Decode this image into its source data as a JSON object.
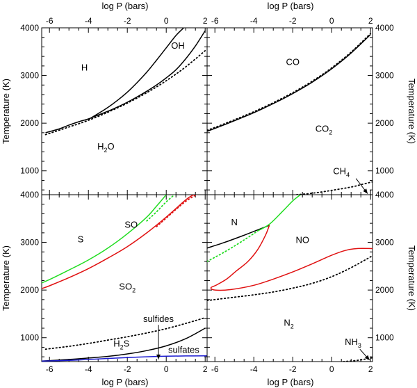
{
  "chart_data": {
    "type": "line",
    "title": "",
    "xlabel": "log P (bars)",
    "ylabel": "Temperature (K)",
    "xlim": [
      -6.4,
      2.1
    ],
    "ylim": [
      500,
      4000
    ],
    "xticks": [
      -6,
      -4,
      -2,
      0,
      2
    ],
    "xtick_labels": [
      "-6",
      "-4",
      "-2",
      "0",
      "2"
    ],
    "yticks": [
      1000,
      2000,
      3000,
      4000
    ],
    "ytick_labels": [
      "1000",
      "2000",
      "3000",
      "4000"
    ],
    "colors": {
      "black": "#000000",
      "green": "#22dd22",
      "red": "#e01010",
      "blue": "#1a1ad0"
    },
    "panels": [
      {
        "id": "top-left",
        "labels": [
          {
            "text": "H",
            "x": -4.2,
            "y": 3100
          },
          {
            "text": "OH",
            "x": 0.6,
            "y": 3560
          },
          {
            "text": "H",
            "sub": "2",
            "tail": "O",
            "x": -3.1,
            "y": 1450
          }
        ],
        "series": [
          {
            "name": "H/OH boundary",
            "color": "black",
            "dashed": false,
            "x": [
              -4.0,
              -3.5,
              -3.0,
              -2.5,
              -2.0,
              -1.5,
              -1.0,
              -0.5,
              0.0,
              0.5,
              0.9
            ],
            "y": [
              2080,
              2200,
              2330,
              2480,
              2650,
              2850,
              3070,
              3320,
              3580,
              3840,
              4000
            ]
          },
          {
            "name": "OH/H2O boundary",
            "color": "black",
            "dashed": false,
            "x": [
              -6.2,
              -5.5,
              -5.0,
              -4.5,
              -4.0,
              -3.5,
              -3.0,
              -2.5,
              -2.0,
              -1.5,
              -1.0,
              -0.5,
              0.0,
              0.5,
              1.0,
              1.5,
              2.0
            ],
            "y": [
              1800,
              1880,
              1960,
              2030,
              2090,
              2170,
              2250,
              2340,
              2440,
              2550,
              2670,
              2800,
              2950,
              3120,
              3350,
              3620,
              3940
            ]
          },
          {
            "name": "H/H2O dotted",
            "color": "black",
            "dashed": true,
            "x": [
              -6.2,
              -5.0,
              -4.0,
              -3.0,
              -2.0,
              -1.0,
              0.0,
              1.0,
              2.0
            ],
            "y": [
              1760,
              1920,
              2060,
              2230,
              2420,
              2640,
              2890,
              3180,
              3520
            ]
          }
        ]
      },
      {
        "id": "top-right",
        "labels": [
          {
            "text": "CO",
            "x": -2.0,
            "y": 3220
          },
          {
            "text": "CO",
            "sub": "2",
            "tail": "",
            "x": -0.4,
            "y": 1820
          },
          {
            "text": "CH",
            "sub": "4",
            "tail": "",
            "x": 0.5,
            "y": 930
          }
        ],
        "series": [
          {
            "name": "CO/CO2 boundary",
            "color": "black",
            "dashed": false,
            "x": [
              -6.4,
              -6.0,
              -5.0,
              -4.0,
              -3.0,
              -2.0,
              -1.0,
              0.0,
              1.0,
              2.0
            ],
            "y": [
              1830,
              1890,
              2050,
              2220,
              2410,
              2620,
              2860,
              3140,
              3470,
              3860
            ]
          },
          {
            "name": "CO/CO2 dotted",
            "color": "black",
            "dashed": true,
            "x": [
              -6.4,
              -6.0,
              -5.0,
              -4.0,
              -3.0,
              -2.0,
              -1.0,
              0.0,
              1.0,
              2.0
            ],
            "y": [
              1850,
              1910,
              2070,
              2240,
              2430,
              2640,
              2880,
              3160,
              3490,
              3880
            ]
          },
          {
            "name": "CH4 dotted",
            "color": "black",
            "dashed": true,
            "x": [
              -1.8,
              -1.0,
              0.0,
              1.0,
              1.5,
              2.1
            ],
            "y": [
              500,
              530,
              590,
              660,
              710,
              770
            ]
          }
        ],
        "arrows": [
          {
            "x1": 1.25,
            "y1": 840,
            "x2": 1.85,
            "y2": 520
          }
        ]
      },
      {
        "id": "bottom-left",
        "labels": [
          {
            "text": "S",
            "x": -4.4,
            "y": 3000
          },
          {
            "text": "SO",
            "x": -1.8,
            "y": 3310
          },
          {
            "text": "SO",
            "sub": "2",
            "tail": "",
            "x": -2.0,
            "y": 2010
          },
          {
            "text": "sulfides",
            "x": -0.4,
            "y": 1330
          },
          {
            "text": "H",
            "sub": "2",
            "tail": "S",
            "x": -2.3,
            "y": 810
          },
          {
            "text": "sulfates",
            "x": 0.9,
            "y": 680
          }
        ],
        "series": [
          {
            "name": "S/SO boundary",
            "color": "green",
            "dashed": false,
            "x": [
              -6.4,
              -6.0,
              -5.0,
              -4.0,
              -3.0,
              -2.0,
              -1.0,
              -0.5,
              0.0
            ],
            "y": [
              2150,
              2220,
              2420,
              2630,
              2880,
              3180,
              3530,
              3760,
              4000
            ]
          },
          {
            "name": "S/SO dotted",
            "color": "green",
            "dashed": true,
            "x": [
              -1.0,
              -0.5,
              0.0,
              0.6
            ],
            "y": [
              3450,
              3640,
              3850,
              4060
            ]
          },
          {
            "name": "SO/SO2 boundary",
            "color": "red",
            "dashed": false,
            "x": [
              -6.4,
              -6.0,
              -5.0,
              -4.0,
              -3.0,
              -2.0,
              -1.0,
              0.0,
              1.0,
              1.4
            ],
            "y": [
              2030,
              2090,
              2260,
              2450,
              2670,
              2910,
              3200,
              3530,
              3890,
              4000
            ]
          },
          {
            "name": "SO/SO2 dotted",
            "color": "red",
            "dashed": true,
            "x": [
              -0.5,
              0.0,
              1.0,
              1.9
            ],
            "y": [
              3330,
              3510,
              3860,
              4080
            ]
          },
          {
            "name": "sulfides dotted",
            "color": "black",
            "dashed": true,
            "x": [
              -6.2,
              -5.0,
              -4.0,
              -3.0,
              -2.0,
              -1.0,
              0.0,
              1.0,
              2.0
            ],
            "y": [
              760,
              820,
              880,
              950,
              1020,
              1100,
              1190,
              1300,
              1420
            ]
          },
          {
            "name": "H2S/SO2 boundary",
            "color": "black",
            "dashed": false,
            "x": [
              -6.4,
              -5.0,
              -4.0,
              -3.0,
              -2.0,
              -1.0,
              0.0,
              1.0,
              2.0
            ],
            "y": [
              510,
              545,
              575,
              610,
              660,
              730,
              830,
              980,
              1200
            ]
          },
          {
            "name": "sulfates boundary",
            "color": "blue",
            "dashed": false,
            "x": [
              -6.4,
              -5.0,
              -4.0,
              -3.0,
              -2.0,
              -1.0,
              0.0,
              1.0,
              2.1
            ],
            "y": [
              510,
              525,
              545,
              565,
              585,
              600,
              612,
              618,
              620
            ]
          }
        ],
        "arrows": [
          {
            "x1": -0.4,
            "y1": 1270,
            "x2": -0.4,
            "y2": 545
          }
        ]
      },
      {
        "id": "bottom-right",
        "labels": [
          {
            "text": "N",
            "x": -5.0,
            "y": 3360
          },
          {
            "text": "NO",
            "x": -1.5,
            "y": 2990
          },
          {
            "text": "N",
            "sub": "2",
            "tail": "",
            "x": -2.2,
            "y": 1250
          },
          {
            "text": "NH",
            "sub": "3",
            "tail": "",
            "x": 1.1,
            "y": 850
          }
        ],
        "series": [
          {
            "name": "N/NO boundary",
            "color": "black",
            "dashed": false,
            "x": [
              -6.4,
              -5.5,
              -4.5,
              -3.5,
              -3.2
            ],
            "y": [
              2880,
              3000,
              3150,
              3310,
              3360
            ]
          },
          {
            "name": "N/N2 green",
            "color": "green",
            "dashed": false,
            "x": [
              -3.8,
              -3.2,
              -2.5,
              -2.0,
              -1.6
            ],
            "y": [
              3240,
              3380,
              3660,
              3870,
              4000
            ]
          },
          {
            "name": "N/N2 green dotted",
            "color": "green",
            "dashed": true,
            "x": [
              -6.4,
              -5.5,
              -4.5,
              -3.8
            ],
            "y": [
              2600,
              2800,
              3050,
              3240
            ]
          },
          {
            "name": "NO region boundary",
            "color": "red",
            "dashed": false,
            "x": [
              -3.2,
              -3.4,
              -3.8,
              -4.3,
              -4.9,
              -5.4,
              -5.9,
              -6.2,
              -6.0,
              -5.2,
              -4.0,
              -3.0,
              -2.0,
              -1.0,
              0.0,
              0.7,
              1.3,
              2.1
            ],
            "y": [
              3360,
              3150,
              2850,
              2600,
              2400,
              2230,
              2110,
              2050,
              2000,
              2010,
              2100,
              2230,
              2380,
              2550,
              2730,
              2830,
              2870,
              2870
            ]
          },
          {
            "name": "N2 dotted",
            "color": "black",
            "dashed": true,
            "x": [
              -6.4,
              -5.0,
              -4.0,
              -3.0,
              -2.0,
              -1.0,
              0.0,
              1.0,
              2.1
            ],
            "y": [
              1780,
              1850,
              1900,
              1960,
              2040,
              2140,
              2280,
              2470,
              2720
            ]
          },
          {
            "name": "NH3 dotted",
            "color": "black",
            "dashed": true,
            "x": [
              0.6,
              1.2,
              1.7,
              2.1
            ],
            "y": [
              500,
              520,
              550,
              580
            ]
          }
        ],
        "arrows": [
          {
            "x1": 1.45,
            "y1": 760,
            "x2": 1.95,
            "y2": 530
          }
        ]
      }
    ]
  }
}
